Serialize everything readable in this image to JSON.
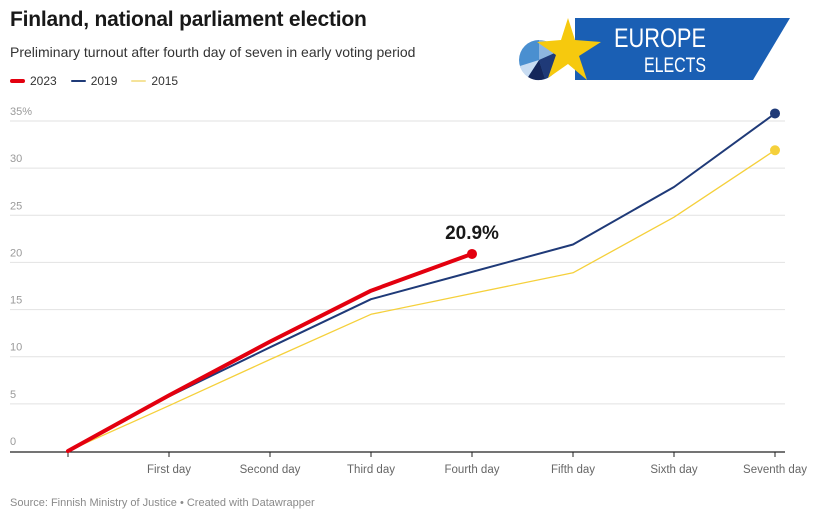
{
  "header": {
    "title": "Finland, national parliament election",
    "subtitle": "Preliminary turnout after fourth day of seven in early voting period"
  },
  "logo": {
    "line1": "EUROPE",
    "line2": "ELECTS",
    "banner_color": "#1a5fb4",
    "star_color": "#f6c90e"
  },
  "footer": {
    "text": "Source: Finnish Ministry of Justice • Created with Datawrapper"
  },
  "chart_data": {
    "type": "line",
    "title": "Finland, national parliament election",
    "subtitle": "Preliminary turnout after fourth day of seven in early voting period",
    "xlabel": "",
    "ylabel": "",
    "x": [
      "",
      "First day",
      "Second day",
      "Third day",
      "Fourth day",
      "Fifth day",
      "Sixth day",
      "Seventh day"
    ],
    "ylim": [
      0,
      35
    ],
    "yticks": [
      0,
      5,
      10,
      15,
      20,
      25,
      30,
      35
    ],
    "ytick_labels": [
      "0",
      "5",
      "10",
      "15",
      "20",
      "25",
      "30",
      "35%"
    ],
    "grid": true,
    "legend": "top-left",
    "series": [
      {
        "name": "2023",
        "color": "#e3000f",
        "values": [
          0,
          5.9,
          11.6,
          17.0,
          20.9
        ]
      },
      {
        "name": "2019",
        "color": "#1f3a78",
        "values": [
          0,
          5.8,
          11.0,
          16.1,
          19.0,
          21.9,
          28.0,
          35.8
        ]
      },
      {
        "name": "2015",
        "color": "#f5d03b",
        "values": [
          0,
          4.8,
          9.7,
          14.5,
          16.7,
          18.9,
          24.8,
          31.9
        ]
      }
    ],
    "annotations": [
      {
        "series": "2023",
        "x": "Fourth day",
        "text": "20.9%"
      }
    ]
  }
}
